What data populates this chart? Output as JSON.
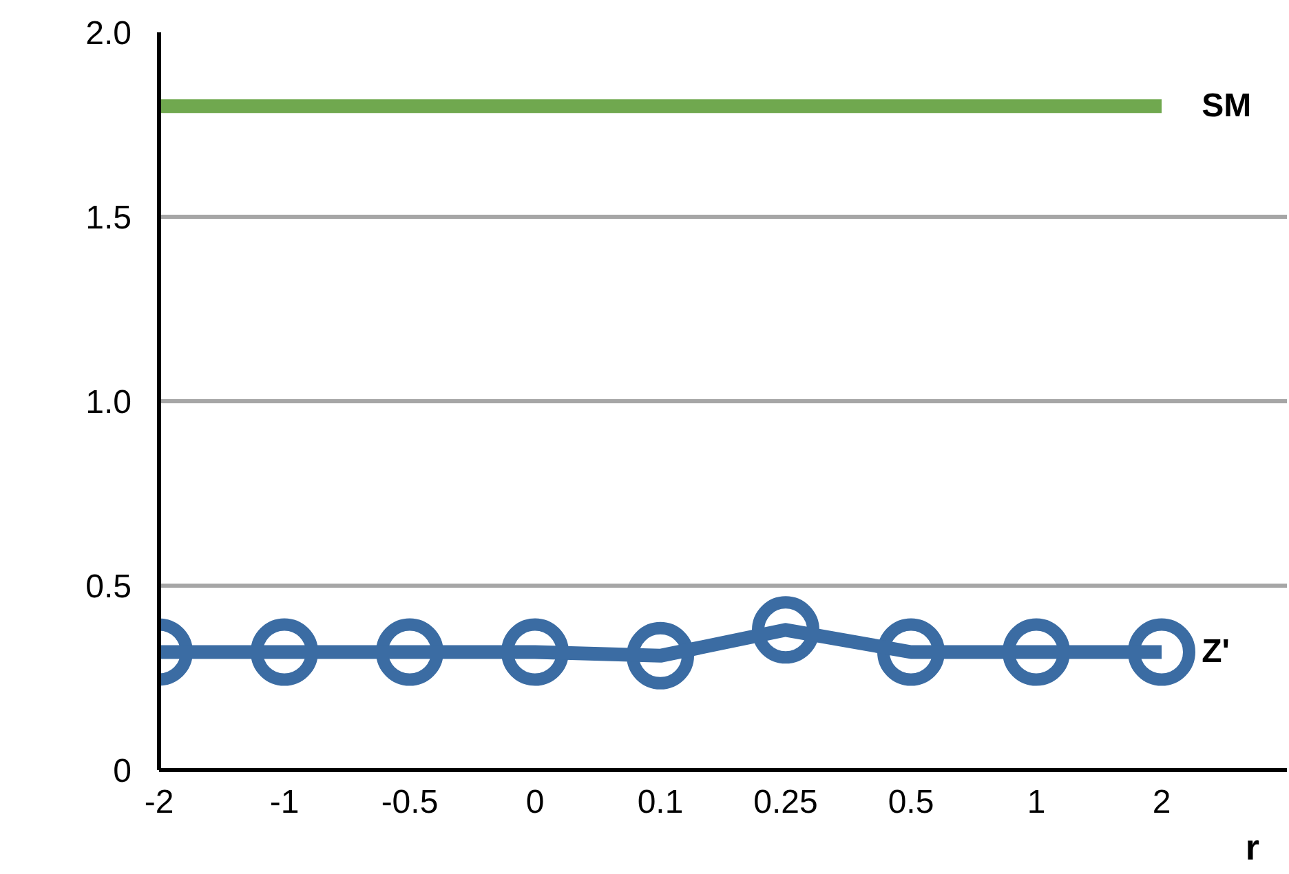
{
  "chart_data": {
    "type": "line",
    "xlabel": "r",
    "categories": [
      "-2",
      "-1",
      "-0.5",
      "0",
      "0.1",
      "0.25",
      "0.5",
      "1",
      "2"
    ],
    "series": [
      {
        "name": "SM",
        "color": "#70a84f",
        "marker": "none",
        "values": [
          1.8,
          1.8,
          1.8,
          1.8,
          1.8,
          1.8,
          1.8,
          1.8,
          1.8
        ]
      },
      {
        "name": "Z'",
        "color": "#3b6ca3",
        "marker": "circle",
        "values": [
          0.32,
          0.32,
          0.32,
          0.32,
          0.31,
          0.38,
          0.32,
          0.32,
          0.32
        ]
      }
    ],
    "ylim": [
      0,
      2.0
    ],
    "yticks": [
      0,
      {
        "value": 0.5,
        "label": "0.5"
      },
      {
        "value": 1.0,
        "label": "1.0"
      },
      {
        "value": 1.5,
        "label": "1.5"
      },
      {
        "value": 2.0,
        "label": "2.0"
      }
    ],
    "grid": "y",
    "line_style": "solid"
  }
}
